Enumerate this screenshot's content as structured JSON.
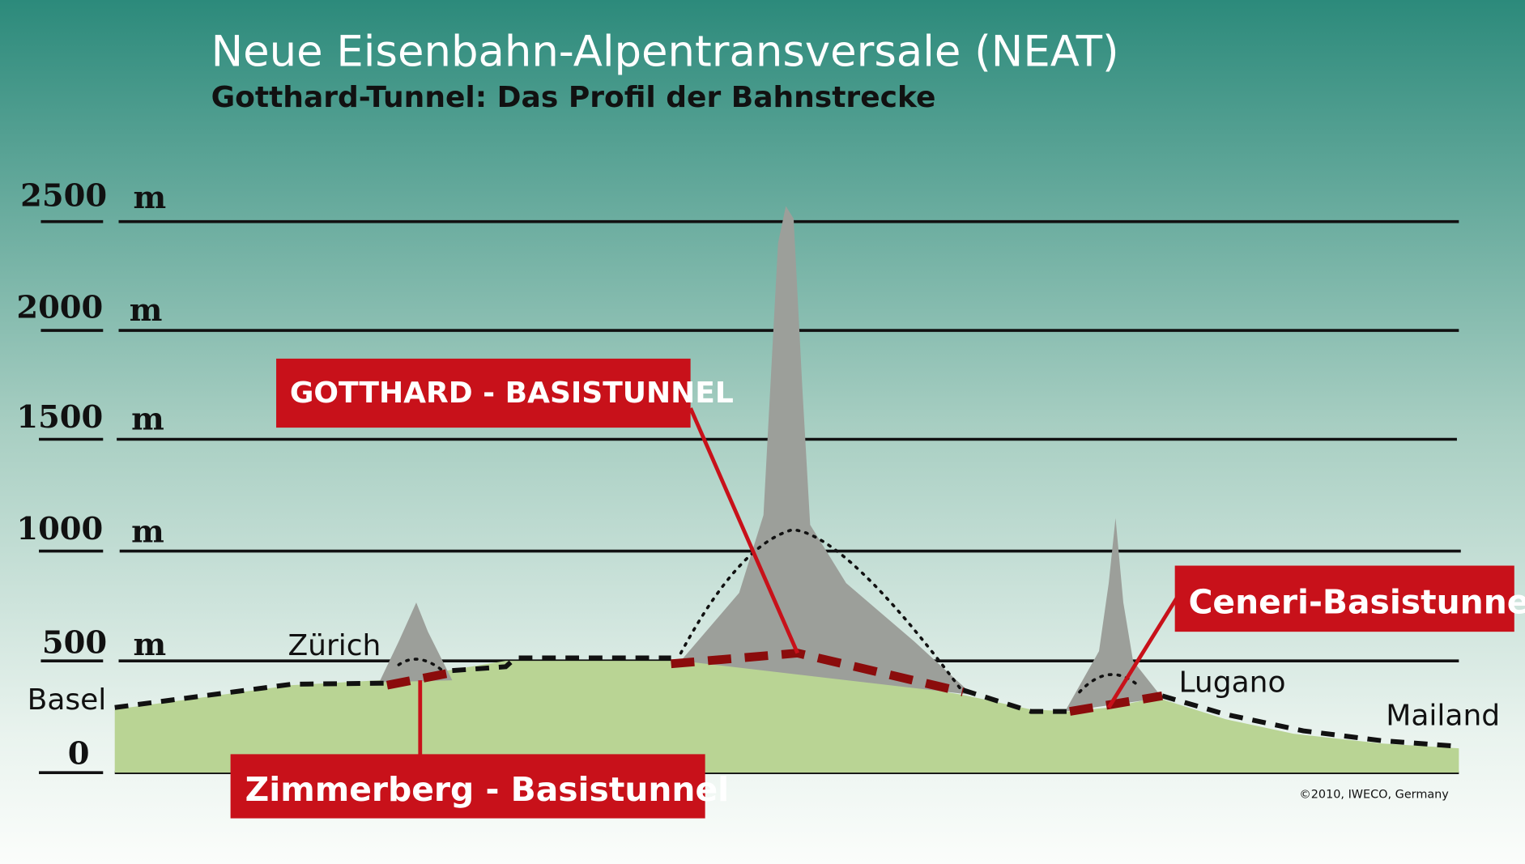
{
  "header": {
    "title": "Neue Eisenbahn-Alpentransversale (NEAT)",
    "subtitle": "Gotthard-Tunnel: Das Profil der Bahnstrecke"
  },
  "axis": {
    "unit": "m",
    "labels": [
      "2500",
      "2000",
      "1500",
      "1000",
      "500",
      "0"
    ]
  },
  "places": [
    "Basel",
    "Zürich",
    "Lugano",
    "Mailand"
  ],
  "tunnels": [
    "GOTTHARD - BASISTUNNEL",
    "Zimmerberg - Basistunnel",
    "Ceneri-Basistunnel"
  ],
  "copyright": "©2010, IWECO, Germany"
}
